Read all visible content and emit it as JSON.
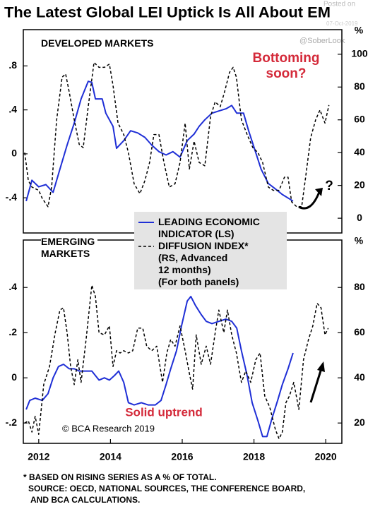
{
  "title": "The Latest Global LEI Uptick Is All About EM",
  "watermark": [
    "Posted on",
    "@SoberLook",
    "07-Oct-2019"
  ],
  "notes": [
    "* BASED ON RISING SERIES AS A % OF TOTAL.",
    "SOURCE: OECD, NATIONAL SOURCES, THE CONFERENCE BOARD,",
    "AND BCA CALCULATIONS."
  ],
  "chart_data": [
    {
      "type": "line",
      "panel_label": "DEVELOPED MARKETS",
      "y2label": "%",
      "annotations": [
        "Bottoming\nsoon?",
        "?"
      ],
      "xlim": [
        2011.57,
        2020.45
      ],
      "ylim": [
        -0.72,
        1.13
      ],
      "y2lim": [
        -9,
        115
      ],
      "yticks": [
        {
          "value": 0.8,
          "label": ".8"
        },
        {
          "value": 0.4,
          "label": ".4"
        },
        0,
        {
          "value": -0.4,
          "label": "-.4"
        }
      ],
      "y2ticks": [
        100,
        80,
        60,
        40,
        20,
        0
      ],
      "series": [
        {
          "name": "LEADING ECONOMIC\nINDICATOR (LS)",
          "color": "#1f2fd6",
          "x": [
            2011.65,
            2011.81,
            2012.0,
            2012.2,
            2012.4,
            2012.59,
            2012.79,
            2012.99,
            2013.18,
            2013.38,
            2013.48,
            2013.58,
            2013.77,
            2013.87,
            2014.07,
            2014.17,
            2014.37,
            2014.56,
            2014.76,
            2014.96,
            2015.15,
            2015.35,
            2015.55,
            2015.74,
            2015.94,
            2016.14,
            2016.33,
            2016.47,
            2016.63,
            2016.83,
            2017.02,
            2017.22,
            2017.38,
            2017.52,
            2017.71,
            2017.85,
            2018.01,
            2018.2,
            2018.4,
            2018.6,
            2018.79,
            2018.99,
            2019.09
          ],
          "values": [
            -0.43,
            -0.24,
            -0.3,
            -0.28,
            -0.35,
            -0.14,
            0.08,
            0.28,
            0.5,
            0.66,
            0.65,
            0.5,
            0.5,
            0.37,
            0.25,
            0.05,
            0.12,
            0.21,
            0.19,
            0.15,
            0.08,
            0.02,
            -0.01,
            0.02,
            -0.03,
            0.12,
            0.18,
            0.25,
            0.31,
            0.37,
            0.39,
            0.41,
            0.44,
            0.37,
            0.37,
            0.21,
            0.05,
            -0.14,
            -0.27,
            -0.32,
            -0.37,
            -0.41,
            -0.43
          ]
        },
        {
          "name": "DIFFUSION INDEX*\n(RS, Advanced\n12 months)\n(For both panels)",
          "color": "#000000",
          "axis": "y2",
          "dashed": true,
          "x": [
            2011.61,
            2011.71,
            2011.81,
            2012.0,
            2012.1,
            2012.26,
            2012.36,
            2012.5,
            2012.65,
            2012.75,
            2012.85,
            2012.99,
            2013.13,
            2013.24,
            2013.38,
            2013.54,
            2013.68,
            2013.83,
            2013.97,
            2014.07,
            2014.21,
            2014.37,
            2014.5,
            2014.66,
            2014.82,
            2014.96,
            2015.09,
            2015.21,
            2015.35,
            2015.49,
            2015.64,
            2015.8,
            2015.94,
            2016.08,
            2016.2,
            2016.33,
            2016.47,
            2016.63,
            2016.79,
            2016.92,
            2017.06,
            2017.18,
            2017.32,
            2017.42,
            2017.51,
            2017.65,
            2017.81,
            2017.97,
            2018.11,
            2018.24,
            2018.4,
            2018.54,
            2018.7,
            2018.85,
            2018.95,
            2019.05,
            2019.19,
            2019.33,
            2019.44,
            2019.58,
            2019.72,
            2019.84,
            2019.98,
            2020.09
          ],
          "values": [
            40,
            23,
            19,
            17,
            12,
            7,
            19,
            60,
            86,
            88,
            77,
            60,
            45,
            43,
            68,
            95,
            92,
            92,
            94,
            81,
            58,
            51,
            40,
            21,
            15,
            23,
            34,
            51,
            51,
            34,
            19,
            21,
            34,
            58,
            30,
            47,
            34,
            32,
            62,
            71,
            68,
            77,
            89,
            92,
            86,
            60,
            51,
            43,
            40,
            34,
            19,
            17,
            17,
            25,
            25,
            10,
            7,
            7,
            25,
            49,
            60,
            66,
            58,
            69
          ]
        }
      ]
    },
    {
      "type": "line",
      "panel_label": "EMERGING\nMARKETS",
      "y2label": "%",
      "annotations": [
        "Solid uptrend",
        "© BCA Research 2019"
      ],
      "xlim": [
        2011.57,
        2020.45
      ],
      "ylim": [
        -0.29,
        0.61
      ],
      "y2lim": [
        11,
        101
      ],
      "xticks": [
        2012,
        2014,
        2016,
        2018,
        2020
      ],
      "yticks": [
        {
          "value": 0.4,
          "label": ".4"
        },
        {
          "value": 0.2,
          "label": ".2"
        },
        0,
        {
          "value": -0.2,
          "label": "-.2"
        }
      ],
      "y2ticks": [
        80,
        60,
        40,
        20
      ],
      "series": [
        {
          "color": "#1f2fd6",
          "x": [
            2011.65,
            2011.75,
            2011.9,
            2012.1,
            2012.26,
            2012.4,
            2012.55,
            2012.69,
            2012.85,
            2012.99,
            2013.13,
            2013.28,
            2013.48,
            2013.58,
            2013.68,
            2013.83,
            2013.97,
            2014.11,
            2014.23,
            2014.37,
            2014.5,
            2014.66,
            2014.86,
            2015.05,
            2015.25,
            2015.41,
            2015.55,
            2015.68,
            2015.84,
            2015.98,
            2016.14,
            2016.24,
            2016.37,
            2016.53,
            2016.67,
            2016.83,
            2017.02,
            2017.22,
            2017.38,
            2017.52,
            2017.65,
            2017.81,
            2017.95,
            2018.11,
            2018.24,
            2018.36,
            2018.5,
            2018.66,
            2018.79,
            2018.95,
            2019.09
          ],
          "values": [
            -0.14,
            -0.1,
            -0.09,
            -0.1,
            -0.07,
            0,
            0.05,
            0.06,
            0.04,
            0.04,
            0.03,
            0.03,
            0.03,
            0.01,
            -0.01,
            0,
            -0.01,
            0.01,
            0.03,
            -0.02,
            -0.11,
            -0.12,
            -0.11,
            -0.12,
            -0.12,
            -0.1,
            -0.03,
            0.04,
            0.12,
            0.23,
            0.34,
            0.36,
            0.32,
            0.28,
            0.25,
            0.24,
            0.25,
            0.26,
            0.25,
            0.22,
            0.12,
            0.01,
            -0.11,
            -0.19,
            -0.26,
            -0.26,
            -0.18,
            -0.1,
            -0.03,
            0.04,
            0.11
          ]
        },
        {
          "color": "#000000",
          "axis": "y2",
          "dashed": true,
          "x": [
            2011.61,
            2011.71,
            2011.81,
            2011.9,
            2012.0,
            2012.14,
            2012.3,
            2012.46,
            2012.59,
            2012.69,
            2012.79,
            2012.89,
            2012.99,
            2013.09,
            2013.18,
            2013.32,
            2013.48,
            2013.58,
            2013.68,
            2013.83,
            2013.97,
            2014.07,
            2014.17,
            2014.27,
            2014.37,
            2014.5,
            2014.62,
            2014.76,
            2014.9,
            2015.01,
            2015.15,
            2015.29,
            2015.45,
            2015.57,
            2015.68,
            2015.8,
            2015.94,
            2016.08,
            2016.2,
            2016.29,
            2016.39,
            2016.53,
            2016.67,
            2016.79,
            2016.92,
            2017.02,
            2017.16,
            2017.26,
            2017.38,
            2017.51,
            2017.65,
            2017.77,
            2017.91,
            2018.05,
            2018.17,
            2018.3,
            2018.44,
            2018.6,
            2018.7,
            2018.79,
            2018.89,
            2018.99,
            2019.11,
            2019.25,
            2019.38,
            2019.52,
            2019.64,
            2019.76,
            2019.87,
            2019.98,
            2020.07
          ],
          "values": [
            20,
            21,
            16,
            23,
            15,
            37,
            45,
            60,
            70,
            71,
            60,
            45,
            37,
            48,
            38,
            57,
            81,
            76,
            60,
            59,
            63,
            45,
            52,
            51,
            52,
            51,
            52,
            62,
            62,
            54,
            52,
            54,
            38,
            51,
            57,
            54,
            63,
            52,
            42,
            35,
            59,
            46,
            54,
            46,
            60,
            70,
            60,
            70,
            59,
            51,
            38,
            43,
            38,
            48,
            51,
            32,
            27,
            17,
            13,
            16,
            29,
            32,
            38,
            26,
            48,
            57,
            63,
            73,
            71,
            59,
            62
          ]
        }
      ]
    }
  ]
}
